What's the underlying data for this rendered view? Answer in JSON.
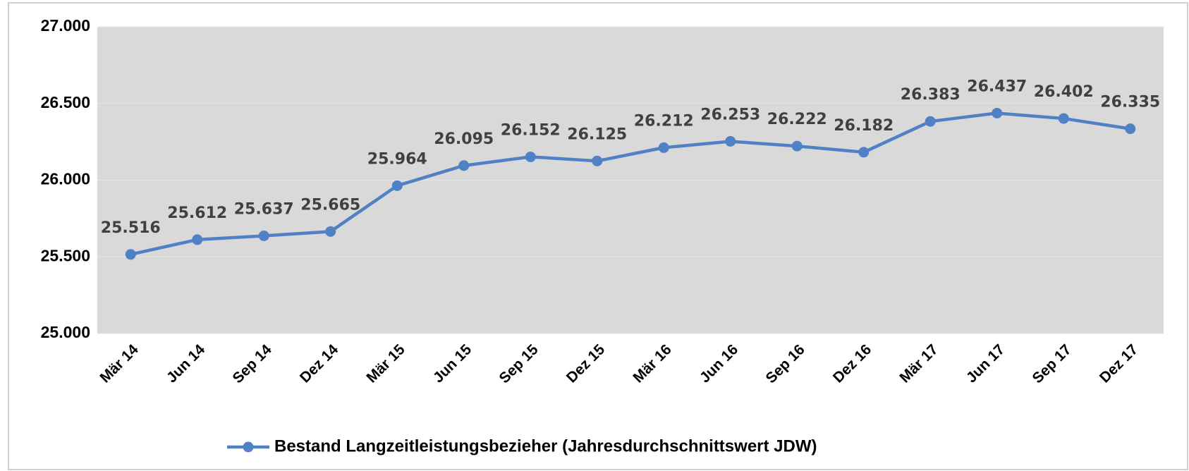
{
  "chart_data": {
    "type": "line",
    "categories": [
      "Mär 14",
      "Jun 14",
      "Sep 14",
      "Dez 14",
      "Mär 15",
      "Jun 15",
      "Sep 15",
      "Dez 15",
      "Mär 16",
      "Jun 16",
      "Sep 16",
      "Dez 16",
      "Mär 17",
      "Jun 17",
      "Sep 17",
      "Dez 17"
    ],
    "series": [
      {
        "name": "Bestand Langzeitleistungsbezieher (Jahresdurchschnittswert JDW)",
        "color": "#4f81c4",
        "values": [
          25516,
          25612,
          25637,
          25665,
          25964,
          26095,
          26152,
          26125,
          26212,
          26253,
          26222,
          26182,
          26383,
          26437,
          26402,
          26335
        ],
        "value_labels": [
          "25.516",
          "25.612",
          "25.637",
          "25.665",
          "25.964",
          "26.095",
          "26.152",
          "26.125",
          "26.212",
          "26.253",
          "26.222",
          "26.182",
          "26.383",
          "26.437",
          "26.402",
          "26.335"
        ]
      }
    ],
    "ylim": [
      25000,
      27000
    ],
    "yticks": [
      {
        "value": 25000,
        "label": "25.000"
      },
      {
        "value": 25500,
        "label": "25.500"
      },
      {
        "value": 26000,
        "label": "26.000"
      },
      {
        "value": 26500,
        "label": "26.500"
      },
      {
        "value": 27000,
        "label": "27.000"
      }
    ],
    "grid": true,
    "legend": "bottom"
  }
}
